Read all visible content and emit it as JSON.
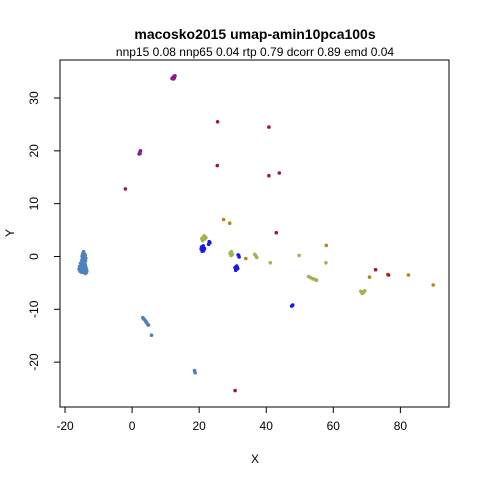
{
  "chart_data": {
    "type": "scatter",
    "title": "macosko2015 umap-amin10pca100s",
    "subtitle": "nnp15 0.08 nnp65 0.04 rtp 0.79 dcorr 0.89 emd 0.04",
    "xlabel": "X",
    "ylabel": "Y",
    "xlim": [
      -21.5,
      94.5
    ],
    "ylim": [
      -28.5,
      37.2
    ],
    "xticks": [
      -20,
      0,
      20,
      40,
      60,
      80
    ],
    "yticks": [
      -20,
      -10,
      0,
      10,
      20,
      30
    ],
    "grid": false,
    "legend": "none",
    "series": [
      {
        "color": "#4f81bd",
        "points": [
          [
            -14.8,
            -0.5
          ],
          [
            -14.9,
            0.0
          ],
          [
            -14.7,
            0.5
          ],
          [
            -14.5,
            0.9
          ],
          [
            -14.3,
            0.6
          ],
          [
            -14.2,
            0.1
          ],
          [
            -14.4,
            -0.3
          ],
          [
            -14.6,
            -0.9
          ],
          [
            -14.9,
            -1.2
          ],
          [
            -15.1,
            -1.5
          ],
          [
            -15.3,
            -1.8
          ],
          [
            -15.5,
            -2.1
          ],
          [
            -15.2,
            -2.4
          ],
          [
            -14.9,
            -2.6
          ],
          [
            -14.6,
            -2.8
          ],
          [
            -14.3,
            -3.0
          ],
          [
            -14.0,
            -3.2
          ],
          [
            -13.7,
            -3.1
          ],
          [
            -13.5,
            -2.8
          ],
          [
            -13.6,
            -2.4
          ],
          [
            -13.8,
            -2.0
          ],
          [
            -14.0,
            -1.6
          ],
          [
            -14.1,
            -1.2
          ],
          [
            -13.9,
            -0.8
          ],
          [
            -13.8,
            -0.3
          ],
          [
            -14.0,
            0.3
          ],
          [
            -14.5,
            -1.7
          ],
          [
            -14.2,
            -2.2
          ],
          [
            -15.0,
            -0.7
          ],
          [
            -15.4,
            -1.3
          ],
          [
            -15.7,
            -1.9
          ],
          [
            -15.8,
            -2.4
          ],
          [
            -15.5,
            -2.8
          ],
          [
            -15.0,
            -3.0
          ],
          [
            -14.7,
            -1.9
          ],
          [
            -14.4,
            -2.5
          ],
          [
            -13.9,
            -2.6
          ],
          [
            -14.8,
            0.3
          ],
          [
            -14.1,
            -0.6
          ],
          [
            -14.6,
            -1.4
          ],
          [
            3.2,
            -11.6
          ],
          [
            3.6,
            -11.9
          ],
          [
            4.0,
            -12.2
          ],
          [
            4.3,
            -12.5
          ],
          [
            4.6,
            -12.8
          ],
          [
            4.9,
            -13.0
          ],
          [
            3.4,
            -11.8
          ],
          [
            4.2,
            -12.4
          ],
          [
            5.8,
            -14.9
          ],
          [
            18.6,
            -21.6
          ],
          [
            18.8,
            -22.0
          ]
        ]
      },
      {
        "color": "#8b1a8b",
        "points": [
          [
            11.9,
            33.7
          ],
          [
            12.2,
            33.9
          ],
          [
            12.5,
            34.1
          ],
          [
            12.8,
            34.2
          ],
          [
            12.3,
            33.6
          ],
          [
            12.6,
            33.8
          ],
          [
            2.1,
            19.4
          ],
          [
            2.3,
            19.7
          ],
          [
            2.5,
            20.0
          ],
          [
            2.4,
            19.5
          ]
        ]
      },
      {
        "color": "#1a1ae6",
        "points": [
          [
            20.6,
            1.4
          ],
          [
            21.0,
            1.7
          ],
          [
            21.3,
            1.1
          ],
          [
            20.9,
            1.0
          ],
          [
            21.6,
            1.5
          ],
          [
            21.2,
            2.0
          ],
          [
            20.7,
            1.8
          ],
          [
            21.4,
            1.3
          ],
          [
            22.8,
            2.3
          ],
          [
            23.2,
            2.6
          ],
          [
            23.0,
            2.8
          ],
          [
            30.7,
            -2.1
          ],
          [
            31.0,
            -2.4
          ],
          [
            31.3,
            -2.0
          ],
          [
            30.9,
            -2.6
          ],
          [
            31.5,
            -2.3
          ],
          [
            31.2,
            -1.8
          ],
          [
            31.6,
            0.3
          ],
          [
            31.9,
            -0.1
          ],
          [
            31.8,
            0.2
          ],
          [
            47.6,
            -9.4
          ],
          [
            47.9,
            -9.2
          ]
        ]
      },
      {
        "color": "#9fb450",
        "points": [
          [
            20.8,
            3.4
          ],
          [
            21.3,
            3.7
          ],
          [
            21.7,
            3.3
          ],
          [
            21.5,
            3.9
          ],
          [
            21.0,
            3.0
          ],
          [
            22.0,
            3.6
          ],
          [
            29.2,
            0.6
          ],
          [
            29.6,
            0.9
          ],
          [
            29.9,
            0.4
          ],
          [
            29.5,
            0.2
          ],
          [
            36.6,
            0.4
          ],
          [
            36.9,
            0.1
          ],
          [
            37.2,
            -0.2
          ],
          [
            41.2,
            -1.2
          ],
          [
            49.8,
            0.2
          ],
          [
            52.6,
            -3.8
          ],
          [
            53.2,
            -4.0
          ],
          [
            53.8,
            -4.2
          ],
          [
            54.4,
            -4.3
          ],
          [
            55.0,
            -4.5
          ],
          [
            57.8,
            -1.2
          ],
          [
            68.2,
            -6.6
          ],
          [
            68.6,
            -7.0
          ],
          [
            69.0,
            -6.8
          ],
          [
            69.4,
            -6.5
          ]
        ]
      },
      {
        "color": "#b8860b",
        "points": [
          [
            27.3,
            7.0
          ],
          [
            29.1,
            6.3
          ],
          [
            33.9,
            -0.4
          ],
          [
            57.9,
            2.1
          ],
          [
            70.8,
            -3.9
          ],
          [
            76.2,
            -3.4
          ],
          [
            82.4,
            -3.5
          ],
          [
            89.8,
            -5.4
          ]
        ]
      },
      {
        "color": "#a01a2a",
        "points": [
          [
            -2.0,
            12.8
          ],
          [
            25.5,
            25.5
          ],
          [
            40.8,
            24.5
          ],
          [
            25.4,
            17.2
          ],
          [
            40.8,
            15.3
          ],
          [
            43.9,
            15.8
          ],
          [
            43.0,
            4.5
          ],
          [
            72.6,
            -2.5
          ],
          [
            76.5,
            -3.5
          ],
          [
            30.7,
            -25.4
          ]
        ]
      }
    ]
  }
}
